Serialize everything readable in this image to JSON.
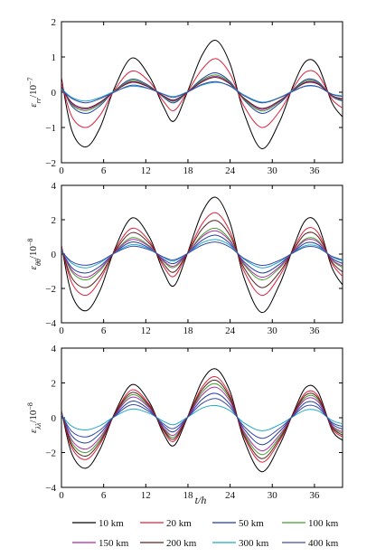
{
  "chart_data": {
    "xlabel": "t/h",
    "xlim": [
      0,
      40
    ],
    "xticks": [
      0,
      6,
      12,
      18,
      24,
      30,
      36
    ],
    "legend": {
      "placement": "bottom",
      "entries": [
        {
          "name": "10 km",
          "color": "#000000"
        },
        {
          "name": "20 km",
          "color": "#e0203a"
        },
        {
          "name": "50 km",
          "color": "#1f3fa0"
        },
        {
          "name": "100 km",
          "color": "#3fa02a"
        },
        {
          "name": "150 km",
          "color": "#b02aa8"
        },
        {
          "name": "200 km",
          "color": "#5a2020"
        },
        {
          "name": "300 km",
          "color": "#21a8c8"
        },
        {
          "name": "400 km",
          "color": "#3a4aa8"
        }
      ]
    },
    "panels": [
      {
        "type": "line",
        "ylabel_main": "ε",
        "ylabel_sub": "rr",
        "ylabel_unit": "/10",
        "ylabel_exp": "−7",
        "ylim": [
          -2,
          2
        ],
        "yticks": [
          -2,
          -1,
          0,
          1,
          2
        ],
        "x": [
          0,
          1.5,
          3.5,
          5.5,
          7.5,
          10,
          12.5,
          14.5,
          16,
          17.8,
          20,
          22,
          24,
          26,
          28.5,
          31,
          33,
          34.8,
          36.5,
          38.5,
          40
        ],
        "series": [
          {
            "name": "10 km",
            "values": [
              0.4,
              -1.1,
              -1.55,
              -1.0,
              0.1,
              0.97,
              0.45,
              -0.4,
              -0.82,
              -0.05,
              1.05,
              1.47,
              0.8,
              -0.6,
              -1.6,
              -0.85,
              0.2,
              0.88,
              0.75,
              -0.3,
              -0.7
            ]
          },
          {
            "name": "20 km",
            "values": [
              0.3,
              -0.7,
              -1.0,
              -0.65,
              0.05,
              0.6,
              0.3,
              -0.25,
              -0.52,
              -0.03,
              0.65,
              0.95,
              0.52,
              -0.4,
              -1.0,
              -0.55,
              0.13,
              0.58,
              0.5,
              -0.2,
              -0.45
            ]
          },
          {
            "name": "50 km",
            "values": [
              0.2,
              -0.4,
              -0.6,
              -0.38,
              0.03,
              0.37,
              0.18,
              -0.14,
              -0.3,
              -0.02,
              0.38,
              0.55,
              0.3,
              -0.22,
              -0.6,
              -0.32,
              0.08,
              0.36,
              0.3,
              -0.12,
              -0.25
            ]
          },
          {
            "name": "100 km",
            "values": [
              0.18,
              -0.36,
              -0.52,
              -0.33,
              0.03,
              0.33,
              0.16,
              -0.12,
              -0.26,
              -0.02,
              0.34,
              0.49,
              0.27,
              -0.2,
              -0.53,
              -0.28,
              0.07,
              0.32,
              0.27,
              -0.11,
              -0.22
            ]
          },
          {
            "name": "150 km",
            "values": [
              0.16,
              -0.33,
              -0.48,
              -0.3,
              0.02,
              0.3,
              0.15,
              -0.11,
              -0.24,
              -0.02,
              0.31,
              0.45,
              0.25,
              -0.18,
              -0.49,
              -0.26,
              0.06,
              0.29,
              0.25,
              -0.1,
              -0.2
            ]
          },
          {
            "name": "200 km",
            "values": [
              0.15,
              -0.3,
              -0.45,
              -0.28,
              0.02,
              0.28,
              0.14,
              -0.1,
              -0.22,
              -0.02,
              0.29,
              0.42,
              0.23,
              -0.17,
              -0.46,
              -0.24,
              0.06,
              0.27,
              0.23,
              -0.09,
              -0.19
            ]
          },
          {
            "name": "300 km",
            "values": [
              0.1,
              -0.15,
              -0.25,
              -0.15,
              0.02,
              0.17,
              0.1,
              -0.05,
              -0.12,
              0.0,
              0.2,
              0.28,
              0.18,
              -0.08,
              -0.28,
              -0.15,
              0.05,
              0.17,
              0.15,
              -0.05,
              -0.1
            ]
          },
          {
            "name": "400 km",
            "values": [
              0.08,
              -0.18,
              -0.3,
              -0.18,
              0.0,
              0.2,
              0.1,
              -0.06,
              -0.15,
              -0.01,
              0.22,
              0.3,
              0.17,
              -0.1,
              -0.3,
              -0.16,
              0.03,
              0.18,
              0.16,
              -0.06,
              -0.12
            ]
          }
        ]
      },
      {
        "type": "line",
        "ylabel_main": "ε",
        "ylabel_sub": "θθ",
        "ylabel_unit": "/10",
        "ylabel_exp": "−8",
        "ylim": [
          -4,
          4
        ],
        "yticks": [
          -4,
          -2,
          0,
          2,
          4
        ],
        "x": [
          0,
          1.5,
          3.5,
          5.5,
          7.5,
          10,
          12.5,
          14.5,
          16,
          17.8,
          20,
          22,
          24,
          26,
          28.5,
          31,
          33,
          34.8,
          36.5,
          38.5,
          40
        ],
        "series": [
          {
            "name": "10 km",
            "values": [
              0.5,
              -2.4,
              -3.3,
              -2.1,
              0.2,
              2.1,
              1.0,
              -1.0,
              -1.85,
              -0.1,
              2.4,
              3.3,
              1.8,
              -1.4,
              -3.4,
              -1.8,
              0.4,
              2.0,
              1.7,
              -0.8,
              -1.8
            ]
          },
          {
            "name": "20 km",
            "values": [
              0.4,
              -1.7,
              -2.4,
              -1.5,
              0.15,
              1.5,
              0.75,
              -0.7,
              -1.3,
              -0.05,
              1.75,
              2.4,
              1.3,
              -1.0,
              -2.4,
              -1.3,
              0.3,
              1.45,
              1.25,
              -0.55,
              -1.3
            ]
          },
          {
            "name": "50 km",
            "values": [
              0.25,
              -0.8,
              -1.1,
              -0.7,
              0.05,
              0.7,
              0.35,
              -0.3,
              -0.55,
              -0.02,
              0.8,
              1.1,
              0.6,
              -0.45,
              -1.1,
              -0.6,
              0.12,
              0.65,
              0.55,
              -0.25,
              -0.55
            ]
          },
          {
            "name": "100 km",
            "values": [
              0.3,
              -1.05,
              -1.5,
              -0.95,
              0.08,
              0.95,
              0.48,
              -0.42,
              -0.78,
              -0.03,
              1.1,
              1.5,
              0.82,
              -0.62,
              -1.5,
              -0.82,
              0.18,
              0.9,
              0.78,
              -0.35,
              -0.78
            ]
          },
          {
            "name": "150 km",
            "values": [
              0.28,
              -0.95,
              -1.35,
              -0.85,
              0.07,
              0.85,
              0.43,
              -0.38,
              -0.7,
              -0.03,
              1.0,
              1.35,
              0.74,
              -0.56,
              -1.35,
              -0.74,
              0.16,
              0.82,
              0.7,
              -0.32,
              -0.7
            ]
          },
          {
            "name": "200 km",
            "values": [
              0.35,
              -1.4,
              -1.95,
              -1.25,
              0.1,
              1.25,
              0.62,
              -0.55,
              -1.05,
              -0.04,
              1.45,
              1.95,
              1.07,
              -0.8,
              -1.95,
              -1.07,
              0.24,
              1.2,
              1.02,
              -0.45,
              -1.05
            ]
          },
          {
            "name": "300 km",
            "values": [
              0.2,
              -0.55,
              -0.8,
              -0.5,
              0.05,
              0.55,
              0.3,
              -0.2,
              -0.4,
              0.0,
              0.65,
              0.85,
              0.5,
              -0.3,
              -0.8,
              -0.45,
              0.1,
              0.5,
              0.45,
              -0.15,
              -0.4
            ]
          },
          {
            "name": "400 km",
            "values": [
              0.18,
              -0.45,
              -0.65,
              -0.42,
              0.04,
              0.45,
              0.25,
              -0.17,
              -0.33,
              0.0,
              0.52,
              0.7,
              0.4,
              -0.25,
              -0.66,
              -0.37,
              0.08,
              0.42,
              0.37,
              -0.13,
              -0.33
            ]
          }
        ]
      },
      {
        "type": "line",
        "ylabel_main": "ε",
        "ylabel_sub": "λλ",
        "ylabel_unit": "/10",
        "ylabel_exp": "−8",
        "ylim": [
          -4,
          4
        ],
        "yticks": [
          -4,
          -2,
          0,
          2,
          4
        ],
        "x": [
          0,
          1.5,
          3.5,
          5.5,
          7.5,
          10,
          12.5,
          14.5,
          16,
          17.8,
          20,
          22,
          24,
          26,
          28.5,
          31,
          33,
          34.8,
          36.5,
          38.5,
          40
        ],
        "series": [
          {
            "name": "10 km",
            "values": [
              0.4,
              -2.1,
              -2.9,
              -1.8,
              0.2,
              1.9,
              0.9,
              -0.9,
              -1.6,
              -0.1,
              2.1,
              2.8,
              1.5,
              -1.3,
              -3.1,
              -1.6,
              0.3,
              1.75,
              1.5,
              -0.7,
              -1.3
            ]
          },
          {
            "name": "20 km",
            "values": [
              0.35,
              -1.75,
              -2.4,
              -1.5,
              0.15,
              1.6,
              0.75,
              -0.75,
              -1.35,
              -0.08,
              1.75,
              2.35,
              1.25,
              -1.1,
              -2.55,
              -1.35,
              0.25,
              1.45,
              1.25,
              -0.6,
              -1.1
            ]
          },
          {
            "name": "50 km",
            "values": [
              0.25,
              -1.05,
              -1.45,
              -0.9,
              0.08,
              0.95,
              0.45,
              -0.45,
              -0.8,
              -0.05,
              1.05,
              1.4,
              0.75,
              -0.65,
              -1.55,
              -0.8,
              0.15,
              0.88,
              0.75,
              -0.35,
              -0.65
            ]
          },
          {
            "name": "100 km",
            "values": [
              0.3,
              -1.45,
              -2.0,
              -1.25,
              0.12,
              1.32,
              0.62,
              -0.62,
              -1.12,
              -0.07,
              1.45,
              1.95,
              1.04,
              -0.9,
              -2.12,
              -1.12,
              0.21,
              1.2,
              1.04,
              -0.48,
              -0.9
            ]
          },
          {
            "name": "150 km",
            "values": [
              0.28,
              -1.3,
              -1.8,
              -1.12,
              0.11,
              1.18,
              0.56,
              -0.56,
              -1.0,
              -0.06,
              1.3,
              1.75,
              0.93,
              -0.81,
              -1.9,
              -1.0,
              0.19,
              1.08,
              0.93,
              -0.43,
              -0.81
            ]
          },
          {
            "name": "200 km",
            "values": [
              0.32,
              -1.6,
              -2.2,
              -1.37,
              0.13,
              1.45,
              0.68,
              -0.68,
              -1.23,
              -0.07,
              1.6,
              2.15,
              1.14,
              -1.0,
              -2.35,
              -1.23,
              0.23,
              1.32,
              1.14,
              -0.53,
              -1.0
            ]
          },
          {
            "name": "300 km",
            "values": [
              0.15,
              -0.5,
              -0.7,
              -0.45,
              0.05,
              0.5,
              0.25,
              -0.2,
              -0.4,
              0.0,
              0.55,
              0.7,
              0.4,
              -0.3,
              -0.75,
              -0.4,
              0.08,
              0.45,
              0.4,
              -0.15,
              -0.35
            ]
          },
          {
            "name": "400 km",
            "values": [
              0.2,
              -0.8,
              -1.1,
              -0.7,
              0.06,
              0.75,
              0.35,
              -0.35,
              -0.62,
              -0.03,
              0.82,
              1.1,
              0.58,
              -0.5,
              -1.18,
              -0.62,
              0.11,
              0.68,
              0.58,
              -0.27,
              -0.5
            ]
          }
        ]
      }
    ]
  }
}
